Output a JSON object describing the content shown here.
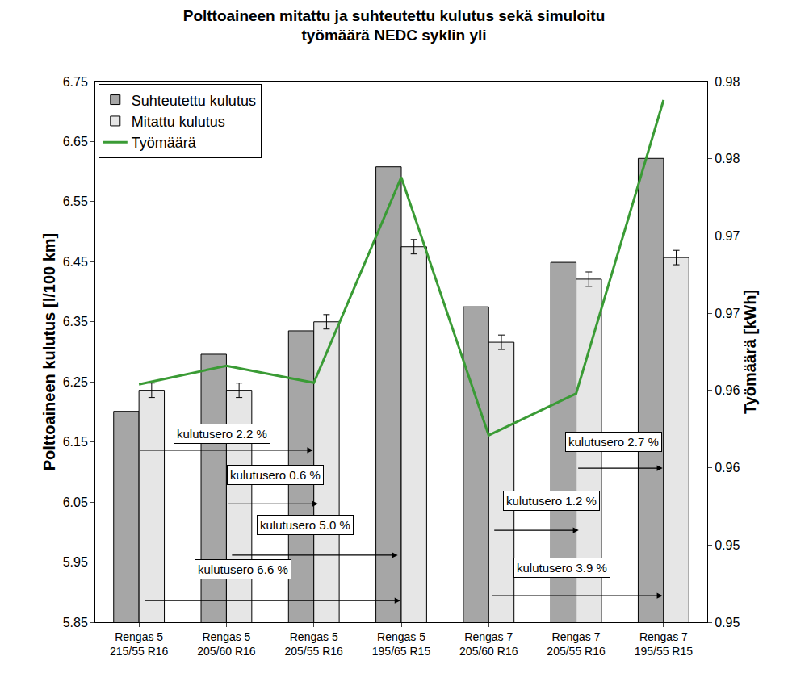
{
  "chart_data": {
    "type": "bar",
    "title": "Polttoaineen mitattu ja suhteutettu kulutus sekä simuloitu\ntyömäärä NEDC syklin yli",
    "categories": [
      "Rengas 5\n215/55 R16",
      "Rengas 5\n205/60 R16",
      "Rengas 5\n205/55 R16",
      "Rengas 5\n195/65 R15",
      "Rengas 7\n205/60 R16",
      "Rengas 7\n205/55 R16",
      "Rengas 7\n195/55 R15"
    ],
    "y_label": "Polttoaineen kulutus [l/100 km]",
    "y2_label": "Työmäärä [kWh]",
    "ylim": [
      5.85,
      6.75
    ],
    "yticks": [
      5.85,
      5.95,
      6.05,
      6.15,
      6.25,
      6.35,
      6.45,
      6.55,
      6.65,
      6.75
    ],
    "y2lim": [
      0.95,
      0.985
    ],
    "y2ticks": [
      {
        "value": 0.95,
        "label": "0.95"
      },
      {
        "value": 0.955,
        "label": "0.95"
      },
      {
        "value": 0.96,
        "label": "0.96"
      },
      {
        "value": 0.965,
        "label": "0.96"
      },
      {
        "value": 0.97,
        "label": "0.97"
      },
      {
        "value": 0.975,
        "label": "0.97"
      },
      {
        "value": 0.98,
        "label": "0.98"
      },
      {
        "value": 0.985,
        "label": "0.98"
      }
    ],
    "grid": false,
    "legend": "top left",
    "series": [
      {
        "name": "Suhteutettu kulutus",
        "type": "bar",
        "color": "#a6a6a6",
        "values": [
          6.201,
          6.296,
          6.335,
          6.608,
          6.375,
          6.449,
          6.622
        ]
      },
      {
        "name": "Mitattu kulutus",
        "type": "bar",
        "color": "#e6e6e6",
        "values": [
          6.236,
          6.236,
          6.35,
          6.475,
          6.316,
          6.421,
          6.457
        ],
        "errors": [
          0.012,
          0.012,
          0.012,
          0.012,
          0.012,
          0.012,
          0.012
        ]
      },
      {
        "name": "Työmäärä",
        "type": "line",
        "color": "#3a9b35",
        "axis": "y2",
        "values": [
          0.9654,
          0.9666,
          0.9655,
          0.9788,
          0.9621,
          0.9648,
          0.9838
        ]
      }
    ],
    "annotations": [
      "kulutusero 2.2 %",
      "kulutusero 0.6 %",
      "kulutusero 5.0 %",
      "kulutusero 6.6 %",
      "kulutusero 2.7 %",
      "kulutusero 1.2 %",
      "kulutusero 3.9 %"
    ]
  }
}
